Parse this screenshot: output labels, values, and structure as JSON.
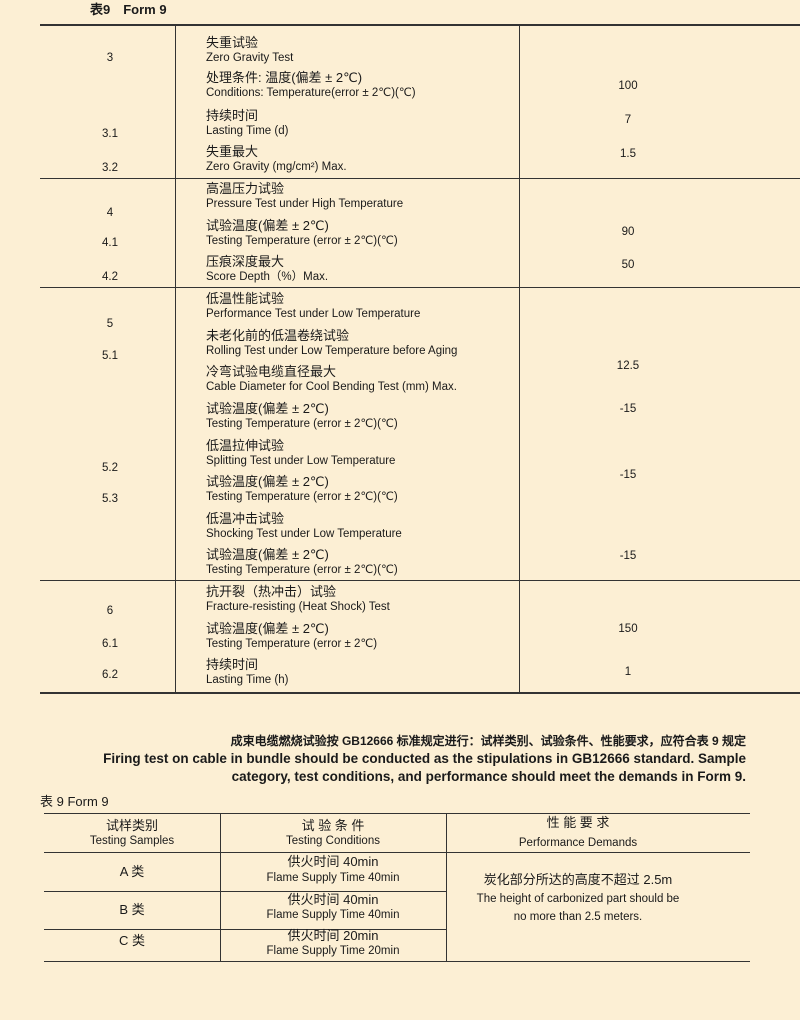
{
  "form1": {
    "title": "表9　Form 9",
    "numbers": [
      [
        "3",
        58
      ],
      [
        "3.1",
        134
      ],
      [
        "3.2",
        168
      ],
      [
        "4",
        213
      ],
      [
        "4.1",
        243
      ],
      [
        "4.2",
        277
      ],
      [
        "5",
        324
      ],
      [
        "5.1",
        356
      ],
      [
        "5.2",
        468
      ],
      [
        "5.3",
        499
      ],
      [
        "6",
        611
      ],
      [
        "6.1",
        644
      ],
      [
        "6.2",
        675
      ]
    ],
    "items": [
      [
        "失重试验",
        "Zero Gravity Test",
        43
      ],
      [
        "处理条件:  温度(偏差 ± 2℃)",
        "Conditions: Temperature(error ± 2℃)(℃)",
        78
      ],
      [
        "持续时间",
        "Lasting Time (d)",
        116
      ],
      [
        "失重最大",
        "Zero Gravity (mg/cm²) Max.",
        152
      ],
      [
        "高温压力试验",
        "Pressure Test under High Temperature",
        189
      ],
      [
        "试验温度(偏差 ± 2℃)",
        "Testing Temperature (error ± 2℃)(℃)",
        226
      ],
      [
        "压痕深度最大",
        "Score Depth（%）Max.",
        262
      ],
      [
        "低温性能试验",
        "Performance Test under Low Temperature",
        299
      ],
      [
        "未老化前的低温卷绕试验",
        "Rolling Test under Low Temperature before Aging",
        336
      ],
      [
        "冷弯试验电缆直径最大",
        "Cable Diameter for Cool Bending Test (mm) Max.",
        372
      ],
      [
        "试验温度(偏差 ± 2℃)",
        "Testing Temperature (error ± 2℃)(℃)",
        409
      ],
      [
        "低温拉伸试验",
        "Splitting Test under Low Temperature",
        446
      ],
      [
        "试验温度(偏差 ± 2℃)",
        "Testing Temperature (error ± 2℃)(℃)",
        482
      ],
      [
        "低温冲击试验",
        "Shocking Test under Low Temperature",
        519
      ],
      [
        "试验温度(偏差 ± 2℃)",
        "Testing Temperature (error ± 2℃)(℃)",
        555
      ],
      [
        "抗开裂（热冲击）试验",
        "Fracture-resisting (Heat Shock) Test",
        592
      ],
      [
        "试验温度(偏差 ± 2℃)",
        "Testing Temperature (error ± 2℃)",
        629
      ],
      [
        "持续时间",
        "Lasting Time (h)",
        665
      ]
    ],
    "values": [
      [
        "100",
        86
      ],
      [
        "7",
        120
      ],
      [
        "1.5",
        154
      ],
      [
        "90",
        232
      ],
      [
        "50",
        265
      ],
      [
        "12.5",
        366
      ],
      [
        "-15",
        409
      ],
      [
        "-15",
        475
      ],
      [
        "-15",
        556
      ],
      [
        "150",
        629
      ],
      [
        "1",
        672
      ]
    ]
  },
  "note": {
    "cn": "成束电缆燃烧试验按 GB12666 标准规定进行：试样类别、试验条件、性能要求，应符合表 9 规定",
    "en1": "Firing test on cable in bundle should be conducted as the stipulations in GB12666 standard. Sample",
    "en2": "category, test conditions, and performance should meet the demands in Form 9."
  },
  "form2": {
    "title": "表 9  Form 9",
    "headers": [
      {
        "cn": "试样类别",
        "en": "Testing Samples"
      },
      {
        "cn": "试 验 条 件",
        "en": "Testing Conditions"
      },
      {
        "cn": "性 能 要 求",
        "en": "Performance Demands"
      }
    ],
    "rows": [
      {
        "sample": "A 类",
        "cn": "供火时间 40min",
        "en": "Flame Supply Time 40min"
      },
      {
        "sample": "B 类",
        "cn": "供火时间 40min",
        "en": "Flame Supply Time 40min"
      },
      {
        "sample": "C 类",
        "cn": "供火时间 20min",
        "en": "Flame Supply Time 20min"
      }
    ],
    "performance": {
      "cn": "炭化部分所达的高度不超过 2.5m",
      "en1": "The height of carbonized part should be",
      "en2": "no more than 2.5 meters."
    }
  }
}
